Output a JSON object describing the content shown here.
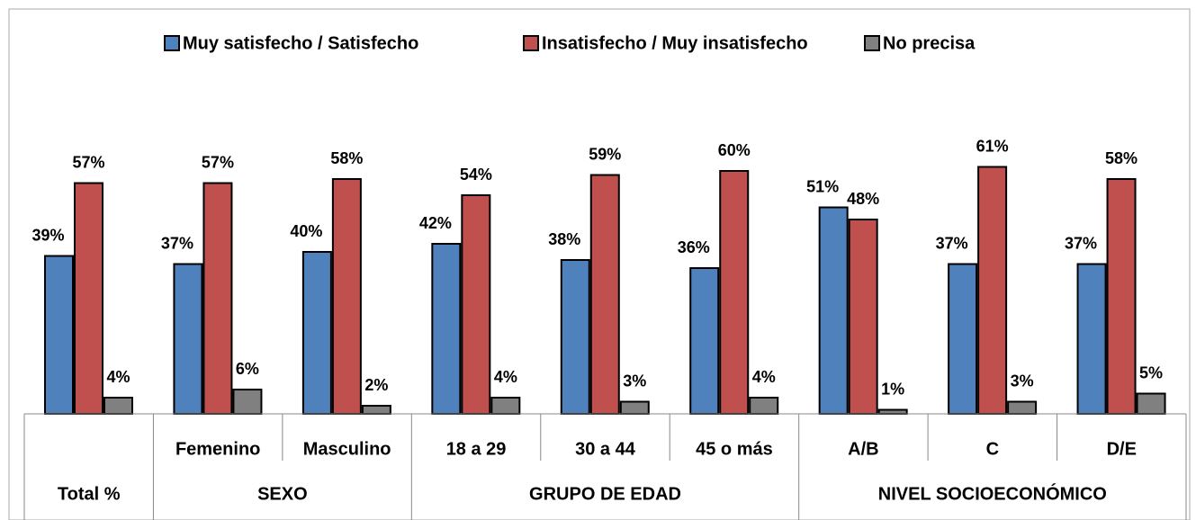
{
  "chart_data": {
    "type": "bar",
    "categories": [
      null,
      "Femenino",
      "Masculino",
      "18 a 29",
      "30 a 44",
      "45 o más",
      "A/B",
      "C",
      "D/E"
    ],
    "groups": [
      {
        "name": "Total %",
        "size": 1
      },
      {
        "name": "SEXO",
        "size": 2
      },
      {
        "name": "GRUPO DE EDAD",
        "size": 3
      },
      {
        "name": "NIVEL SOCIOECONÓMICO",
        "size": 3
      }
    ],
    "series": [
      {
        "name": "Muy satisfecho / Satisfecho",
        "color": "#4f81bd",
        "values": [
          39,
          37,
          40,
          42,
          38,
          36,
          51,
          37,
          37
        ],
        "value_labels": [
          "39%",
          "37%",
          "40%",
          "42%",
          "38%",
          "36%",
          "51%",
          "37%",
          "37%"
        ]
      },
      {
        "name": "Insatisfecho / Muy insatisfecho",
        "color": "#c0504d",
        "values": [
          57,
          57,
          58,
          54,
          59,
          60,
          48,
          61,
          58
        ],
        "value_labels": [
          "57%",
          "57%",
          "58%",
          "54%",
          "59%",
          "60%",
          "48%",
          "61%",
          "58%"
        ]
      },
      {
        "name": "No precisa",
        "color": "#808080",
        "values": [
          4,
          6,
          2,
          4,
          3,
          4,
          1,
          3,
          5
        ],
        "value_labels": [
          "4%",
          "6%",
          "2%",
          "4%",
          "3%",
          "4%",
          "1%",
          "3%",
          "5%"
        ]
      }
    ],
    "ylim": [
      0,
      90
    ]
  }
}
